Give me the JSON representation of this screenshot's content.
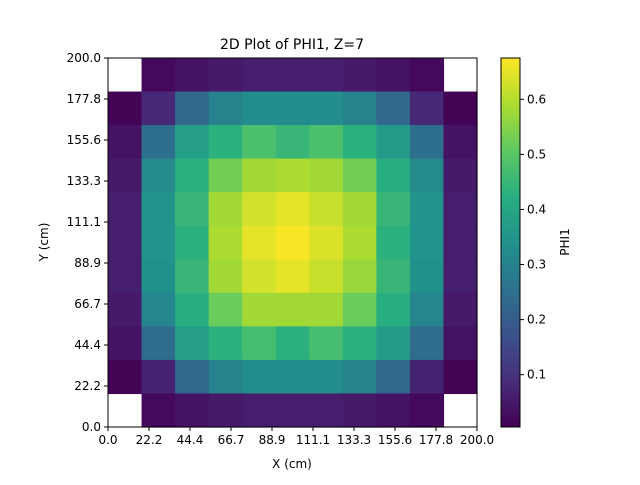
{
  "chart_data": {
    "type": "heatmap",
    "title": "2D Plot of PHI1, Z=7",
    "xlabel": "X (cm)",
    "ylabel": "Y (cm)",
    "xlim": [
      0,
      200
    ],
    "ylim": [
      0,
      200
    ],
    "x_ticks": [
      "0.0",
      "22.2",
      "44.4",
      "66.7",
      "88.9",
      "111.1",
      "133.3",
      "155.6",
      "177.8",
      "200.0"
    ],
    "y_ticks": [
      "0.0",
      "22.2",
      "44.4",
      "66.7",
      "88.9",
      "111.1",
      "133.3",
      "155.6",
      "177.8",
      "200.0"
    ],
    "grid": false,
    "colormap": "viridis",
    "colorbar": {
      "label": "PHI1",
      "min": 0.005,
      "max": 0.675,
      "ticks": [
        "0.1",
        "0.2",
        "0.3",
        "0.4",
        "0.5",
        "0.6"
      ],
      "tick_values": [
        0.1,
        0.2,
        0.3,
        0.4,
        0.5,
        0.6
      ]
    },
    "grid_size": [
      11,
      11
    ],
    "cell_size_cm": 18.18,
    "values_note_rows": "rows listed from top (y high) to bottom (y low); null = empty cell",
    "values": [
      [
        null,
        0.02,
        0.04,
        0.05,
        0.06,
        0.06,
        0.06,
        0.05,
        0.04,
        0.02,
        null
      ],
      [
        0.01,
        0.08,
        0.23,
        0.3,
        0.33,
        0.33,
        0.33,
        0.3,
        0.23,
        0.08,
        0.01
      ],
      [
        0.04,
        0.25,
        0.38,
        0.43,
        0.48,
        0.45,
        0.48,
        0.43,
        0.37,
        0.25,
        0.04
      ],
      [
        0.05,
        0.32,
        0.43,
        0.53,
        0.58,
        0.59,
        0.58,
        0.53,
        0.42,
        0.32,
        0.05
      ],
      [
        0.06,
        0.35,
        0.45,
        0.58,
        0.63,
        0.65,
        0.62,
        0.58,
        0.45,
        0.35,
        0.06
      ],
      [
        0.06,
        0.35,
        0.43,
        0.59,
        0.65,
        0.67,
        0.64,
        0.59,
        0.43,
        0.35,
        0.06
      ],
      [
        0.06,
        0.34,
        0.45,
        0.58,
        0.63,
        0.65,
        0.62,
        0.57,
        0.45,
        0.34,
        0.06
      ],
      [
        0.05,
        0.31,
        0.42,
        0.52,
        0.58,
        0.58,
        0.58,
        0.52,
        0.42,
        0.31,
        0.05
      ],
      [
        0.04,
        0.24,
        0.38,
        0.43,
        0.47,
        0.43,
        0.47,
        0.43,
        0.37,
        0.24,
        0.04
      ],
      [
        0.01,
        0.07,
        0.23,
        0.3,
        0.33,
        0.33,
        0.33,
        0.3,
        0.23,
        0.07,
        0.01
      ],
      [
        null,
        0.02,
        0.04,
        0.05,
        0.06,
        0.06,
        0.06,
        0.05,
        0.04,
        0.02,
        null
      ]
    ]
  }
}
